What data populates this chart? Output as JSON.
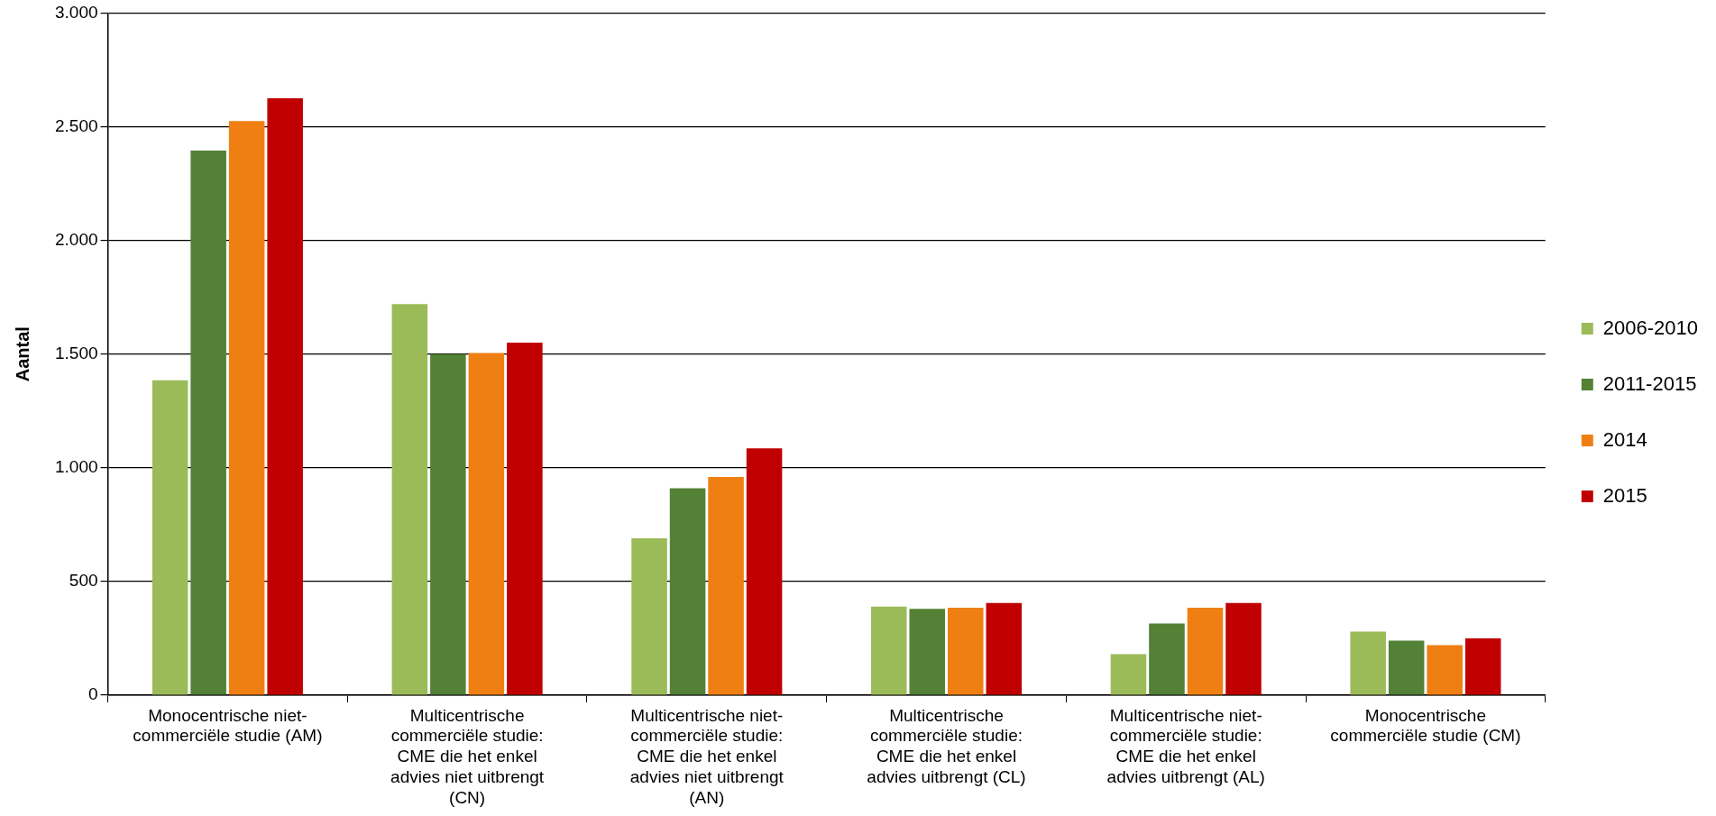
{
  "chart_data": {
    "type": "bar",
    "ylabel": "Aantal",
    "categories": [
      "Monocentrische niet-commerciële studie (AM)",
      "Multicentrische commerciële studie: CME die het enkel advies niet uitbrengt (CN)",
      "Multicentrische niet-commerciële studie: CME die het enkel advies niet uitbrengt (AN)",
      "Multicentrische commerciële studie: CME die het enkel advies uitbrengt (CL)",
      "Multicentrische niet-commerciële studie: CME die het enkel advies uitbrengt (AL)",
      "Monocentrische commerciële studie (CM)"
    ],
    "series": [
      {
        "name": "2006-2010",
        "color": "#9bbb59",
        "values": [
          1385,
          1720,
          690,
          390,
          180,
          280
        ]
      },
      {
        "name": "2011-2015",
        "color": "#538135",
        "values": [
          2395,
          1500,
          910,
          380,
          315,
          240
        ]
      },
      {
        "name": "2014",
        "color": "#f07f13",
        "values": [
          2525,
          1505,
          960,
          385,
          385,
          220
        ]
      },
      {
        "name": "2015",
        "color": "#c00000",
        "values": [
          2625,
          1550,
          1085,
          405,
          405,
          250
        ]
      }
    ],
    "ylim": [
      0,
      3000
    ],
    "yticks": [
      0,
      500,
      {
        "value": 1000,
        "label": "1.000"
      },
      {
        "value": 1500,
        "label": "1.500"
      },
      {
        "value": 2000,
        "label": "2.000"
      },
      {
        "value": 2500,
        "label": "2.500"
      },
      {
        "value": 3000,
        "label": "3.000"
      }
    ],
    "grid": "y",
    "legend": "right"
  }
}
